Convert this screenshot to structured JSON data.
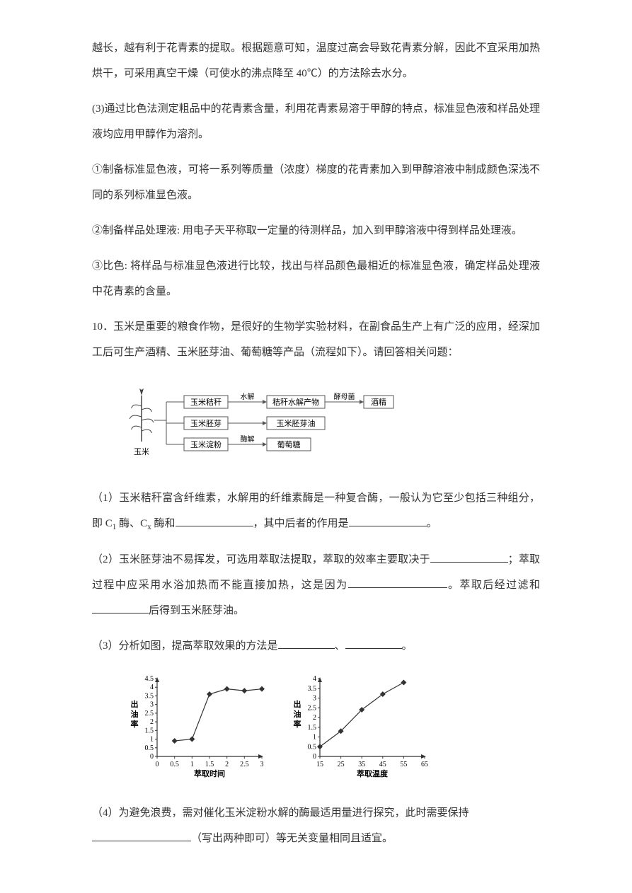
{
  "para1": "越长，越有利于花青素的提取。根据题意可知，温度过高会导致花青素分解，因此不宜采用加热烘干，可采用真空干燥（可使水的沸点降至 40℃）的方法除去水分。",
  "para2": "(3)通过比色法测定粗品中的花青素含量，利用花青素易溶于甲醇的特点，标准显色液和样品处理液均应用甲醇作为溶剂。",
  "para3": "①制备标准显色液，可将一系列等质量（浓度）梯度的花青素加入到甲醇溶液中制成颜色深浅不同的系列标准显色液。",
  "para4": "②制备样品处理液: 用电子天平称取一定量的待测样品，加入到甲醇溶液中得到样品处理液。",
  "para5": "③比色: 将样品与标准显色液进行比较，找出与样品颜色最相近的标准显色液，确定样品处理液中花青素的含量。",
  "para6": "10．玉米是重要的粮食作物，是很好的生物学实验材料，在副食品生产上有广泛的应用，经深加工后可生产酒精、玉米胚芽油、葡萄糖等产品（流程如下）。请回答相关问题：",
  "diagram": {
    "plant_label": "玉米",
    "rows": [
      {
        "box1": "玉米秸秆",
        "arrow1_label": "水解",
        "box2": "秸秆水解产物",
        "arrow2_label": "酵母菌",
        "box3": "酒精"
      },
      {
        "box1": "玉米胚芽",
        "arrow1_label": "",
        "box2": "玉米胚芽油",
        "arrow2_label": "",
        "box3": ""
      },
      {
        "box1": "玉米淀粉",
        "arrow1_label": "酶解",
        "box2": "葡萄糖",
        "arrow2_label": "",
        "box3": ""
      }
    ],
    "box_stroke": "#555",
    "box_fill": "#ffffff",
    "text_fontsize": 11
  },
  "q1": {
    "pre": "（1）玉米秸秆富含纤维素，水解用的纤维素酶是一种复合酶，一般认为它至少包括三种组分，即 C",
    "sub1": "1",
    "mid1": " 酶、C",
    "subx": "x",
    "mid2": " 酶和",
    "mid3": "，其中后者的作用是",
    "end": "。"
  },
  "q2": {
    "pre": "（2）玉米胚芽油不易挥发，可选用萃取法提取，萃取的效率主要取决于",
    "mid1": "；萃取过程中应采用水浴加热而不能直接加热，这是因为",
    "mid2": "。萃取后经过滤和",
    "end": "后得到玉米胚芽油。"
  },
  "q3": {
    "pre": "（3）分析如图，提高萃取效果的方法是",
    "sep": "、",
    "end": "。"
  },
  "charts": {
    "chart1": {
      "type": "line",
      "y_label": "出油率",
      "x_label": "萃取时间",
      "y_ticks": [
        "0",
        "0.5",
        "1",
        "1.5",
        "2",
        "2.5",
        "3",
        "3.5",
        "4",
        "4.5"
      ],
      "x_ticks": [
        "0",
        "0.5",
        "1",
        "1.5",
        "2",
        "2.5",
        "3"
      ],
      "xlim": [
        0,
        3
      ],
      "ylim": [
        0,
        4.5
      ],
      "data_x": [
        0.5,
        1,
        1.5,
        2,
        2.5,
        3
      ],
      "data_y": [
        0.9,
        1.0,
        3.6,
        3.9,
        3.8,
        3.9
      ],
      "line_color": "#333333",
      "marker": "diamond",
      "marker_size": 4,
      "line_width": 1.2,
      "axis_color": "#333333",
      "bg_color": "#ffffff",
      "tick_fontsize": 10,
      "label_fontsize": 11
    },
    "chart2": {
      "type": "line",
      "y_label": "出油率",
      "x_label": "萃取温度",
      "y_ticks": [
        "0",
        "0.5",
        "1",
        "1.5",
        "2",
        "2.5",
        "3",
        "3.5",
        "4"
      ],
      "x_ticks": [
        "15",
        "25",
        "35",
        "45",
        "55",
        "65"
      ],
      "xlim": [
        15,
        65
      ],
      "ylim": [
        0,
        4
      ],
      "data_x": [
        15,
        25,
        35,
        45,
        55
      ],
      "data_y": [
        0.5,
        1.3,
        2.4,
        3.2,
        3.8
      ],
      "line_color": "#333333",
      "marker": "diamond",
      "marker_size": 4,
      "line_width": 1.2,
      "axis_color": "#333333",
      "bg_color": "#ffffff",
      "tick_fontsize": 10,
      "label_fontsize": 11
    }
  },
  "q4": {
    "pre": "（4）为避免浪费，需对催化玉米淀粉水解的酶最适用量进行探究，此时需要保持",
    "mid": "（写出两种即可）等无关变量相同且适宜。"
  }
}
